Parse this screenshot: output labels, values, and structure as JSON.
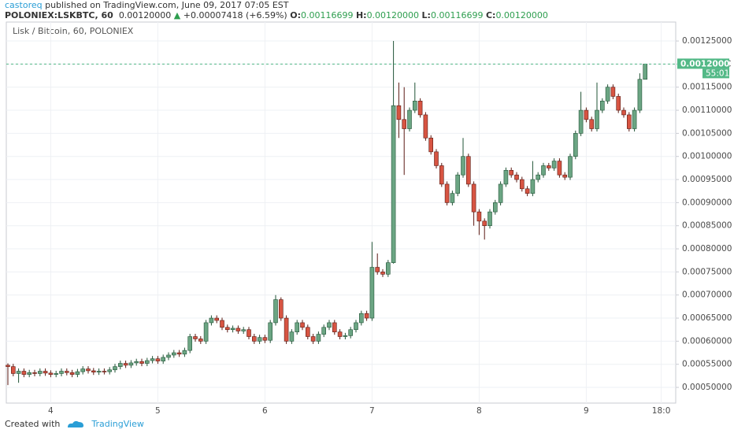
{
  "header": {
    "author": "castoreq",
    "published": "published on TradingView.com, June 09, 2017 07:05 EST",
    "symbol": "POLONIEX:LSKBTC, 60",
    "last": "0.00120000",
    "change": "+0.00007418 (+6.59%)",
    "o_label": "O:",
    "o_value": "0.00116699",
    "h_label": "H:",
    "h_value": "0.00120000",
    "l_label": "L:",
    "l_value": "0.00116699",
    "c_label": "C:",
    "c_value": "0.00120000"
  },
  "footer": {
    "created": "Created with",
    "brand": "TradingView"
  },
  "chart_data": {
    "type": "candlestick",
    "title": "Lisk / Bitcoin, 60, POLONIEX",
    "categories": [
      null,
      null,
      null,
      null,
      null,
      null,
      null,
      null,
      "4",
      null,
      null,
      null,
      null,
      null,
      null,
      null,
      null,
      null,
      null,
      null,
      null,
      null,
      null,
      null,
      null,
      null,
      null,
      null,
      "5",
      null,
      null,
      null,
      null,
      null,
      null,
      null,
      null,
      null,
      null,
      null,
      null,
      null,
      null,
      null,
      null,
      null,
      null,
      null,
      "6",
      null,
      null,
      null,
      null,
      null,
      null,
      null,
      null,
      null,
      null,
      null,
      null,
      null,
      null,
      null,
      null,
      null,
      null,
      null,
      "7",
      null,
      null,
      null,
      null,
      null,
      null,
      null,
      null,
      null,
      null,
      null,
      null,
      null,
      null,
      null,
      null,
      null,
      null,
      null,
      "8",
      null,
      null,
      null,
      null,
      null,
      null,
      null,
      null,
      null,
      null,
      null,
      null,
      null,
      null,
      null,
      null,
      null,
      null,
      null,
      "9",
      null,
      null,
      null,
      null,
      null,
      null,
      null,
      null,
      null,
      null,
      null,
      null,
      null,
      "18:0",
      null
    ],
    "series": [
      {
        "name": "LSKBTC",
        "up_color": "#6ba583",
        "down_color": "#d75442",
        "open": [
          0.000548,
          0.000545,
          0.00053,
          0.000535,
          0.000528,
          0.000532,
          0.00053,
          0.000535,
          0.000531,
          0.000528,
          0.00053,
          0.000535,
          0.000532,
          0.000528,
          0.000534,
          0.00054,
          0.000536,
          0.000533,
          0.000535,
          0.000534,
          0.000538,
          0.000545,
          0.000552,
          0.000548,
          0.000553,
          0.000556,
          0.000552,
          0.000558,
          0.000562,
          0.000557,
          0.000565,
          0.00057,
          0.000575,
          0.000572,
          0.00058,
          0.00061,
          0.000605,
          0.0006,
          0.00064,
          0.00065,
          0.000645,
          0.00063,
          0.000625,
          0.000628,
          0.000622,
          0.000625,
          0.00061,
          0.0006,
          0.000608,
          0.000602,
          0.00064,
          0.00069,
          0.00065,
          0.0006,
          0.00062,
          0.00064,
          0.00063,
          0.00061,
          0.0006,
          0.000615,
          0.00063,
          0.00064,
          0.00062,
          0.00061,
          0.000612,
          0.000625,
          0.00064,
          0.00066,
          0.00065,
          0.00076,
          0.00075,
          0.000745,
          0.00077,
          0.00111,
          0.00108,
          0.00106,
          0.0011,
          0.00112,
          0.00109,
          0.00104,
          0.00101,
          0.00098,
          0.00094,
          0.0009,
          0.00092,
          0.00096,
          0.001,
          0.00094,
          0.00088,
          0.00086,
          0.00085,
          0.00088,
          0.0009,
          0.00094,
          0.00097,
          0.00096,
          0.00095,
          0.00093,
          0.00092,
          0.00095,
          0.00096,
          0.00098,
          0.000975,
          0.00099,
          0.00096,
          0.000955,
          0.001,
          0.00105,
          0.0011,
          0.00108,
          0.00106,
          0.0011,
          0.00112,
          0.00115,
          0.00113,
          0.0011,
          0.00109,
          0.00106,
          0.0011,
          0.00116699,
          null,
          null,
          null,
          null
        ],
        "high": [
          0.000552,
          0.000551,
          0.000541,
          0.000541,
          0.000538,
          0.000538,
          0.000541,
          0.000541,
          0.000537,
          0.000536,
          0.000541,
          0.000541,
          0.000538,
          0.00054,
          0.000546,
          0.000546,
          0.000542,
          0.000541,
          0.000541,
          0.000544,
          0.000551,
          0.000558,
          0.000558,
          0.000559,
          0.000562,
          0.000562,
          0.000564,
          0.000568,
          0.000568,
          0.000571,
          0.000576,
          0.000581,
          0.000581,
          0.000586,
          0.000616,
          0.000616,
          0.000611,
          0.000646,
          0.000656,
          0.000656,
          0.000651,
          0.000636,
          0.000634,
          0.000634,
          0.000631,
          0.000631,
          0.000616,
          0.000614,
          0.000614,
          0.000646,
          0.0007,
          0.000695,
          0.000656,
          0.000626,
          0.000646,
          0.000646,
          0.000636,
          0.000616,
          0.000621,
          0.000636,
          0.000646,
          0.000646,
          0.000626,
          0.000618,
          0.000631,
          0.000646,
          0.000666,
          0.000666,
          0.000815,
          0.00079,
          0.000756,
          0.000776,
          0.00125,
          0.00116,
          0.00115,
          0.001106,
          0.00116,
          0.001126,
          0.001096,
          0.001046,
          0.001016,
          0.000986,
          0.000946,
          0.000926,
          0.000966,
          0.00104,
          0.001006,
          0.000946,
          0.000886,
          0.000866,
          0.000886,
          0.000906,
          0.000946,
          0.000976,
          0.000976,
          0.000966,
          0.000956,
          0.000936,
          0.00099,
          0.000966,
          0.000986,
          0.000986,
          0.000996,
          0.000996,
          0.000966,
          0.001006,
          0.001056,
          0.00114,
          0.001106,
          0.001086,
          0.00116,
          0.001126,
          0.001156,
          0.001156,
          0.001136,
          0.001106,
          0.001096,
          0.001106,
          0.00118,
          0.0012,
          null,
          null,
          null,
          null
        ],
        "low": [
          0.000505,
          0.000524,
          0.00051,
          0.000522,
          0.000522,
          0.000524,
          0.000524,
          0.000525,
          0.000522,
          0.000522,
          0.000524,
          0.000526,
          0.000522,
          0.000522,
          0.000528,
          0.00053,
          0.000527,
          0.000527,
          0.000528,
          0.000528,
          0.000532,
          0.000539,
          0.000542,
          0.000542,
          0.000547,
          0.000546,
          0.000546,
          0.000552,
          0.000551,
          0.000551,
          0.000559,
          0.000564,
          0.000566,
          0.000566,
          0.000574,
          0.000599,
          0.000594,
          0.000594,
          0.000634,
          0.000639,
          0.000624,
          0.000619,
          0.000619,
          0.000616,
          0.000616,
          0.000604,
          0.000594,
          0.000594,
          0.000596,
          0.000596,
          0.000634,
          0.000644,
          0.000594,
          0.000594,
          0.000614,
          0.000624,
          0.000604,
          0.000594,
          0.000594,
          0.000609,
          0.000624,
          0.000614,
          0.000604,
          0.000604,
          0.000606,
          0.000619,
          0.000634,
          0.000644,
          0.000644,
          0.000744,
          0.000739,
          0.000739,
          0.000768,
          0.00104,
          0.00096,
          0.001054,
          0.001094,
          0.001084,
          0.001034,
          0.001004,
          0.000974,
          0.000934,
          0.000894,
          0.000894,
          0.000914,
          0.000954,
          0.000934,
          0.00085,
          0.00083,
          0.00082,
          0.000844,
          0.000874,
          0.000894,
          0.000934,
          0.000954,
          0.000944,
          0.000924,
          0.000914,
          0.000914,
          0.000944,
          0.000954,
          0.000969,
          0.000969,
          0.000954,
          0.000949,
          0.000949,
          0.000994,
          0.001044,
          0.001074,
          0.001054,
          0.001054,
          0.001094,
          0.001114,
          0.001124,
          0.001094,
          0.001084,
          0.001054,
          0.001054,
          0.001094,
          0.00116699,
          null,
          null,
          null,
          null
        ],
        "close": [
          0.000545,
          0.00053,
          0.000535,
          0.000528,
          0.000532,
          0.00053,
          0.000535,
          0.000531,
          0.000528,
          0.00053,
          0.000535,
          0.000532,
          0.000528,
          0.000534,
          0.00054,
          0.000536,
          0.000533,
          0.000535,
          0.000534,
          0.000538,
          0.000545,
          0.000552,
          0.000548,
          0.000553,
          0.000556,
          0.000552,
          0.000558,
          0.000562,
          0.000557,
          0.000565,
          0.00057,
          0.000575,
          0.000572,
          0.00058,
          0.00061,
          0.000605,
          0.0006,
          0.00064,
          0.00065,
          0.000645,
          0.00063,
          0.000625,
          0.000628,
          0.000622,
          0.000625,
          0.00061,
          0.0006,
          0.000608,
          0.000602,
          0.00064,
          0.00069,
          0.00065,
          0.0006,
          0.00062,
          0.00064,
          0.00063,
          0.00061,
          0.0006,
          0.000615,
          0.00063,
          0.00064,
          0.00062,
          0.00061,
          0.000612,
          0.000625,
          0.00064,
          0.00066,
          0.00065,
          0.00076,
          0.00075,
          0.000745,
          0.00077,
          0.00111,
          0.00108,
          0.00106,
          0.0011,
          0.00112,
          0.00109,
          0.00104,
          0.00101,
          0.00098,
          0.00094,
          0.0009,
          0.00092,
          0.00096,
          0.001,
          0.00094,
          0.00088,
          0.00086,
          0.00085,
          0.00088,
          0.0009,
          0.00094,
          0.00097,
          0.00096,
          0.00095,
          0.00093,
          0.00092,
          0.00095,
          0.00096,
          0.00098,
          0.000975,
          0.00099,
          0.00096,
          0.000955,
          0.001,
          0.00105,
          0.0011,
          0.00108,
          0.00106,
          0.0011,
          0.00112,
          0.00115,
          0.00113,
          0.0011,
          0.00109,
          0.00106,
          0.0011,
          0.00116699,
          0.0012,
          null,
          null,
          null,
          null
        ]
      }
    ],
    "ylim": [
      0.000466,
      0.001291
    ],
    "yticks": [
      {
        "value": 0.0005,
        "label": "0.00050000"
      },
      {
        "value": 0.00055,
        "label": "0.00055000"
      },
      {
        "value": 0.0006,
        "label": "0.00060000"
      },
      {
        "value": 0.00065,
        "label": "0.00065000"
      },
      {
        "value": 0.0007,
        "label": "0.00070000"
      },
      {
        "value": 0.00075,
        "label": "0.00075000"
      },
      {
        "value": 0.0008,
        "label": "0.00080000"
      },
      {
        "value": 0.00085,
        "label": "0.00085000"
      },
      {
        "value": 0.0009,
        "label": "0.00090000"
      },
      {
        "value": 0.00095,
        "label": "0.00095000"
      },
      {
        "value": 0.001,
        "label": "0.00100000"
      },
      {
        "value": 0.00105,
        "label": "0.00105000"
      },
      {
        "value": 0.0011,
        "label": "0.00110000"
      },
      {
        "value": 0.00115,
        "label": "0.00115000"
      },
      {
        "value": 0.0012,
        "label": "0.00120000"
      },
      {
        "value": 0.00125,
        "label": "0.00125000"
      }
    ],
    "grid": true,
    "price_line": {
      "value": 0.0012,
      "label": "0.00120000",
      "countdown": "55:01",
      "color": "#53b987"
    }
  }
}
